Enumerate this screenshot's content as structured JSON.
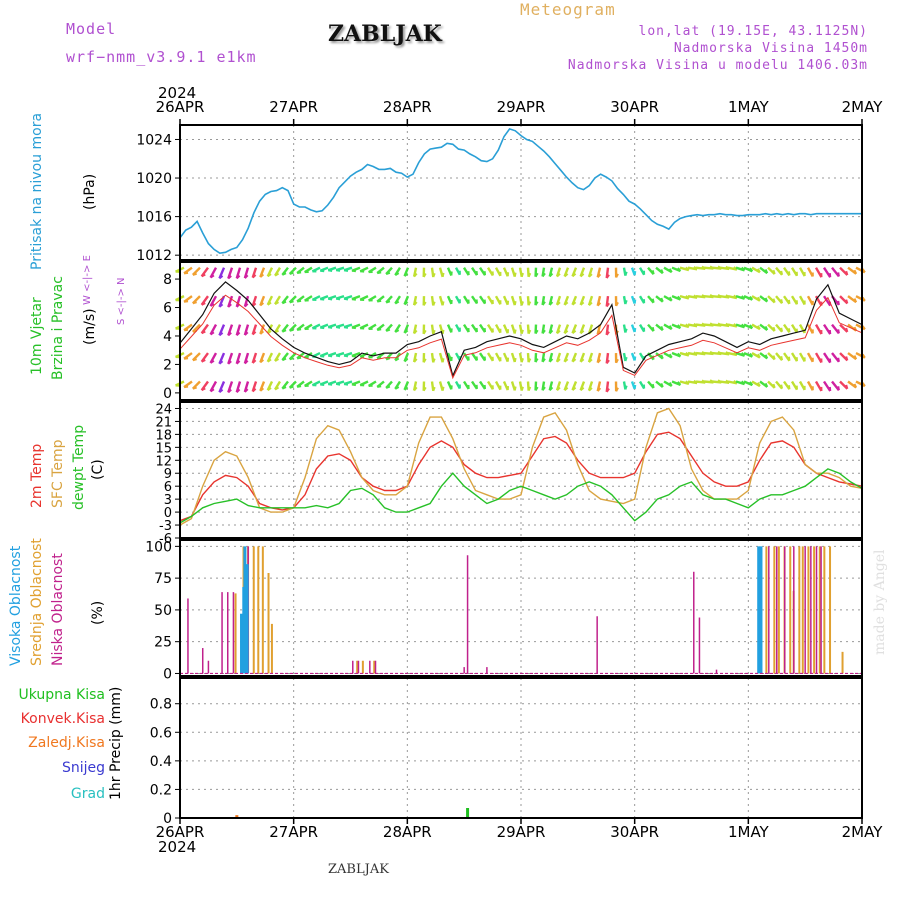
{
  "header": {
    "model_label": "Model",
    "model_name": "wrf−nmm_v3.9.1 e1km",
    "title": "ZABLJAK",
    "subtitle": "Meteogram",
    "location": "lon,lat (19.15E, 43.1125N)",
    "altitude": "Nadmorska Visina 1450m",
    "model_altitude": "Nadmorska Visina u modelu 1406.03m",
    "footer": "ZABLJAK",
    "credit": "made by Angel",
    "year_top": "2024",
    "year_bottom": "2024"
  },
  "colors": {
    "pressure": "#2a9fd6",
    "temp2m": "#e8342e",
    "sfc_temp": "#d9a441",
    "dewpoint": "#27c027",
    "high_cloud": "#22a0e0",
    "mid_cloud": "#e0a030",
    "low_cloud": "#c0218c",
    "total_precip": "#1fbf1f",
    "conv_precip": "#e83030",
    "frz_precip": "#f07820",
    "snow": "#3a3ad0",
    "hail": "#28c0c0",
    "model": "#b050d0",
    "subtitle": "#e0b060"
  },
  "chart_data": {
    "type": "line",
    "x_axis": {
      "tick_labels": [
        "26APR",
        "27APR",
        "28APR",
        "29APR",
        "30APR",
        "1MAY",
        "2MAY"
      ],
      "range_days": [
        0,
        6
      ]
    },
    "panels": {
      "pressure": {
        "ylabel": "(hPa)",
        "title": "Pritisak na nivou mora",
        "yticks": [
          1012,
          1016,
          1020,
          1024
        ],
        "ylim": [
          1011.5,
          1025.5
        ],
        "series": [
          {
            "x": [
              0,
              0.05,
              0.1,
              0.15,
              0.2,
              0.25,
              0.3,
              0.35,
              0.4,
              0.45,
              0.5,
              0.55,
              0.6,
              0.65,
              0.7,
              0.75,
              0.8,
              0.85,
              0.9,
              0.95,
              1.0,
              1.05,
              1.1,
              1.15,
              1.2,
              1.25,
              1.3,
              1.35,
              1.4,
              1.45,
              1.5,
              1.55,
              1.6,
              1.65,
              1.7,
              1.75,
              1.8,
              1.85,
              1.9,
              1.95,
              2.0,
              2.05,
              2.1,
              2.15,
              2.2,
              2.25,
              2.3,
              2.35,
              2.4,
              2.45,
              2.5,
              2.55,
              2.6,
              2.65,
              2.7,
              2.75,
              2.8,
              2.85,
              2.9,
              2.95,
              3.0,
              3.05,
              3.1,
              3.15,
              3.2,
              3.25,
              3.3,
              3.35,
              3.4,
              3.45,
              3.5,
              3.55,
              3.6,
              3.65,
              3.7,
              3.75,
              3.8,
              3.85,
              3.9,
              3.95,
              4.0,
              4.05,
              4.1,
              4.15,
              4.2,
              4.25,
              4.3,
              4.35,
              4.4,
              4.45,
              4.5,
              4.55,
              4.6,
              4.65,
              4.7,
              4.75,
              4.8,
              4.85,
              4.9,
              4.95,
              5.0,
              5.05,
              5.1,
              5.15,
              5.2,
              5.25,
              5.3,
              5.35,
              5.4,
              5.45,
              5.5,
              5.55,
              5.6,
              5.65,
              5.7,
              5.75,
              5.8,
              5.85,
              5.9,
              5.95,
              6.0
            ],
            "y": [
              1013.8,
              1014.6,
              1014.9,
              1015.5,
              1014.3,
              1013.2,
              1012.6,
              1012.2,
              1012.3,
              1012.6,
              1012.8,
              1013.6,
              1014.8,
              1016.4,
              1017.6,
              1018.3,
              1018.6,
              1018.7,
              1019.0,
              1018.7,
              1017.3,
              1017.0,
              1017.0,
              1016.7,
              1016.5,
              1016.6,
              1017.2,
              1018.0,
              1019.0,
              1019.6,
              1020.2,
              1020.6,
              1020.9,
              1021.4,
              1021.2,
              1020.9,
              1020.9,
              1021.0,
              1020.6,
              1020.5,
              1020.1,
              1020.4,
              1021.6,
              1022.5,
              1023.0,
              1023.1,
              1023.2,
              1023.6,
              1023.5,
              1023.0,
              1022.9,
              1022.5,
              1022.2,
              1021.8,
              1021.7,
              1022.0,
              1022.9,
              1024.3,
              1025.1,
              1024.9,
              1024.4,
              1024.0,
              1023.8,
              1023.3,
              1022.8,
              1022.2,
              1021.5,
              1020.8,
              1020.1,
              1019.5,
              1019.0,
              1018.8,
              1019.2,
              1020.0,
              1020.4,
              1020.1,
              1019.7,
              1018.9,
              1018.3,
              1017.6,
              1017.3,
              1016.8,
              1016.2,
              1015.6,
              1015.2,
              1015.0,
              1014.7,
              1015.4,
              1015.8,
              1016.0,
              1016.1,
              1016.2,
              1016.1,
              1016.2,
              1016.2,
              1016.3,
              1016.2,
              1016.2,
              1016.1,
              1016.1,
              1016.2,
              1016.2,
              1016.2,
              1016.3,
              1016.2,
              1016.3,
              1016.2,
              1016.3,
              1016.2,
              1016.3,
              1016.3,
              1016.2,
              1016.3,
              1016.3,
              1016.3,
              1016.3,
              1016.3,
              1016.3,
              1016.3,
              1016.3,
              1016.3
            ]
          }
        ]
      },
      "wind": {
        "ylabel": "(m/s)",
        "title_line1": "10m Vjetar",
        "title_line2": "Brzina i Pravac",
        "compass": "W <-|-> E",
        "compass_ns": "S <-|-> N",
        "yticks": [
          0,
          2,
          4,
          6,
          8
        ],
        "ylim": [
          -0.5,
          9.2
        ],
        "series": [
          {
            "name": "speed",
            "x": [
              0,
              0.1,
              0.2,
              0.3,
              0.4,
              0.5,
              0.6,
              0.7,
              0.8,
              0.9,
              1.0,
              1.1,
              1.2,
              1.3,
              1.4,
              1.5,
              1.6,
              1.7,
              1.8,
              1.9,
              2.0,
              2.1,
              2.2,
              2.3,
              2.4,
              2.5,
              2.6,
              2.7,
              2.8,
              2.9,
              3.0,
              3.1,
              3.2,
              3.3,
              3.4,
              3.5,
              3.6,
              3.7,
              3.8,
              3.9,
              4.0,
              4.1,
              4.2,
              4.3,
              4.4,
              4.5,
              4.6,
              4.7,
              4.8,
              4.9,
              5.0,
              5.1,
              5.2,
              5.3,
              5.4,
              5.5,
              5.6,
              5.7,
              5.8,
              5.9,
              6.0
            ],
            "y": [
              3.5,
              4.5,
              5.5,
              7.0,
              7.8,
              7.2,
              6.5,
              5.5,
              4.5,
              3.8,
              3.2,
              2.8,
              2.5,
              2.2,
              2.0,
              2.2,
              2.8,
              2.6,
              2.8,
              2.8,
              3.4,
              3.6,
              4.0,
              4.3,
              1.2,
              3.0,
              3.2,
              3.6,
              3.8,
              4.0,
              3.8,
              3.4,
              3.2,
              3.6,
              4.0,
              3.8,
              4.2,
              4.8,
              6.2,
              1.8,
              1.4,
              2.6,
              3.0,
              3.4,
              3.6,
              3.8,
              4.2,
              4.0,
              3.6,
              3.2,
              3.6,
              3.4,
              3.8,
              4.0,
              4.2,
              4.4,
              6.6,
              7.6,
              5.6,
              5.2,
              4.8
            ]
          }
        ],
        "arrow_rows": [
          1,
          3,
          5,
          7,
          9
        ],
        "arrow_colors_by_speed": [
          "#2aa7ff",
          "#2ad0e0",
          "#2ae08a",
          "#44e040",
          "#c0e030",
          "#f0a030",
          "#f04060",
          "#d020a0",
          "#8a30e0"
        ]
      },
      "temperature": {
        "ylabel": "(C)",
        "title_line1": "2m Temp",
        "title_line2": "SFC Temp",
        "title_line3": "dewpt Temp",
        "yticks": [
          -6,
          -3,
          0,
          3,
          6,
          9,
          12,
          15,
          18,
          21,
          24
        ],
        "ylim": [
          -6,
          25.5
        ],
        "x": [
          0,
          0.1,
          0.2,
          0.3,
          0.4,
          0.5,
          0.6,
          0.7,
          0.8,
          0.9,
          1.0,
          1.1,
          1.2,
          1.3,
          1.4,
          1.5,
          1.6,
          1.7,
          1.8,
          1.9,
          2.0,
          2.1,
          2.2,
          2.3,
          2.4,
          2.5,
          2.6,
          2.7,
          2.8,
          2.9,
          3.0,
          3.1,
          3.2,
          3.3,
          3.4,
          3.5,
          3.6,
          3.7,
          3.8,
          3.9,
          4.0,
          4.1,
          4.2,
          4.3,
          4.4,
          4.5,
          4.6,
          4.7,
          4.8,
          4.9,
          5.0,
          5.1,
          5.2,
          5.3,
          5.4,
          5.5,
          5.6,
          5.7,
          5.8,
          5.9,
          6.0
        ],
        "series": [
          {
            "name": "2m",
            "y": [
              -2,
              -1,
              4,
              7,
              8.5,
              8,
              6,
              2,
              1,
              0.5,
              1,
              4,
              10,
              13,
              13.5,
              12,
              8,
              6,
              5,
              5,
              6,
              11,
              15,
              16.5,
              15,
              11,
              9,
              8,
              8,
              8.5,
              9,
              13,
              17,
              17.5,
              16,
              12,
              9,
              8,
              8,
              8,
              9,
              14,
              18,
              18.5,
              17,
              13,
              9,
              7,
              6,
              6,
              7,
              12,
              16,
              16.5,
              15,
              11,
              9,
              8,
              7,
              6.5,
              6
            ]
          },
          {
            "name": "sfc",
            "y": [
              -3,
              -1.5,
              6,
              12,
              14,
              13,
              8,
              1,
              0,
              0,
              1,
              8,
              17,
              20,
              19,
              14,
              8,
              5,
              4,
              4,
              6,
              16,
              22,
              22,
              17,
              10,
              5,
              4,
              3,
              3,
              4,
              15,
              22,
              23,
              19,
              11,
              5,
              3,
              2.5,
              2,
              3,
              15,
              23,
              24,
              20,
              10,
              5,
              3,
              3,
              3,
              5,
              16,
              21,
              22,
              19,
              11,
              9,
              9,
              8,
              6,
              5.5
            ]
          },
          {
            "name": "dew",
            "y": [
              -2.5,
              -1,
              1,
              2,
              2.5,
              3,
              1.5,
              1,
              1,
              1,
              1,
              1,
              1.5,
              1,
              2,
              5,
              5.5,
              4,
              1,
              0,
              0,
              1,
              2,
              6,
              9,
              6,
              4,
              2,
              3,
              5,
              6,
              5,
              4,
              3,
              4,
              6,
              7,
              6,
              4,
              1,
              -2,
              0,
              3,
              4,
              6,
              7,
              4,
              3,
              3,
              2,
              1,
              3,
              4,
              4,
              5,
              6,
              8,
              10,
              9,
              7,
              5.5
            ]
          }
        ]
      },
      "clouds": {
        "ylabel": "(%)",
        "title_line1": "Visoka Oblacnost",
        "title_line2": "Srednja Oblacnost",
        "title_line3": "Niska Oblacnost",
        "yticks": [
          0,
          25,
          50,
          75,
          100
        ],
        "ylim": [
          -2,
          105
        ],
        "high": [
          [
            0.55,
            47
          ],
          [
            0.57,
            68
          ],
          [
            0.58,
            100
          ],
          [
            0.6,
            86
          ],
          [
            5.1,
            100
          ],
          [
            5.12,
            100
          ]
        ],
        "mid": [
          [
            0.48,
            63
          ],
          [
            0.55,
            100
          ],
          [
            0.59,
            100
          ],
          [
            0.64,
            100
          ],
          [
            0.68,
            100
          ],
          [
            0.72,
            100
          ],
          [
            0.77,
            79
          ],
          [
            0.8,
            39
          ],
          [
            1.55,
            10
          ],
          [
            1.6,
            10
          ],
          [
            1.7,
            10
          ],
          [
            5.15,
            100
          ],
          [
            5.22,
            100
          ],
          [
            5.26,
            100
          ],
          [
            5.31,
            100
          ],
          [
            5.36,
            100
          ],
          [
            5.39,
            65
          ],
          [
            5.44,
            100
          ],
          [
            5.47,
            100
          ],
          [
            5.52,
            100
          ],
          [
            5.57,
            100
          ],
          [
            5.62,
            100
          ],
          [
            5.66,
            100
          ],
          [
            5.71,
            100
          ],
          [
            5.82,
            17
          ]
        ],
        "low": [
          [
            0.07,
            59
          ],
          [
            0.2,
            20
          ],
          [
            0.25,
            10
          ],
          [
            0.37,
            64
          ],
          [
            0.42,
            64
          ],
          [
            0.47,
            64
          ],
          [
            0.6,
            100
          ],
          [
            1.52,
            10
          ],
          [
            1.57,
            10
          ],
          [
            1.67,
            10
          ],
          [
            1.72,
            10
          ],
          [
            2.5,
            5
          ],
          [
            2.53,
            93
          ],
          [
            2.7,
            5
          ],
          [
            3.67,
            45
          ],
          [
            4.52,
            80
          ],
          [
            4.57,
            44
          ],
          [
            4.72,
            3
          ],
          [
            5.18,
            100
          ],
          [
            5.25,
            100
          ],
          [
            5.32,
            100
          ],
          [
            5.4,
            100
          ],
          [
            5.5,
            100
          ],
          [
            5.55,
            100
          ],
          [
            5.6,
            100
          ],
          [
            5.64,
            100
          ]
        ]
      },
      "precip": {
        "ylabel": "1hr Precip (mm)",
        "legend": [
          "Ukupna Kisa",
          "Konvek.Kisa",
          "Zaledj.Kisa",
          "Snijeg",
          "Grad"
        ],
        "yticks": [
          0,
          0.2,
          0.4,
          0.6,
          0.8
        ],
        "ylim": [
          0,
          0.98
        ],
        "total": [
          [
            2.53,
            0.07
          ]
        ],
        "frozen": [
          [
            0.5,
            0.02
          ]
        ]
      }
    }
  }
}
